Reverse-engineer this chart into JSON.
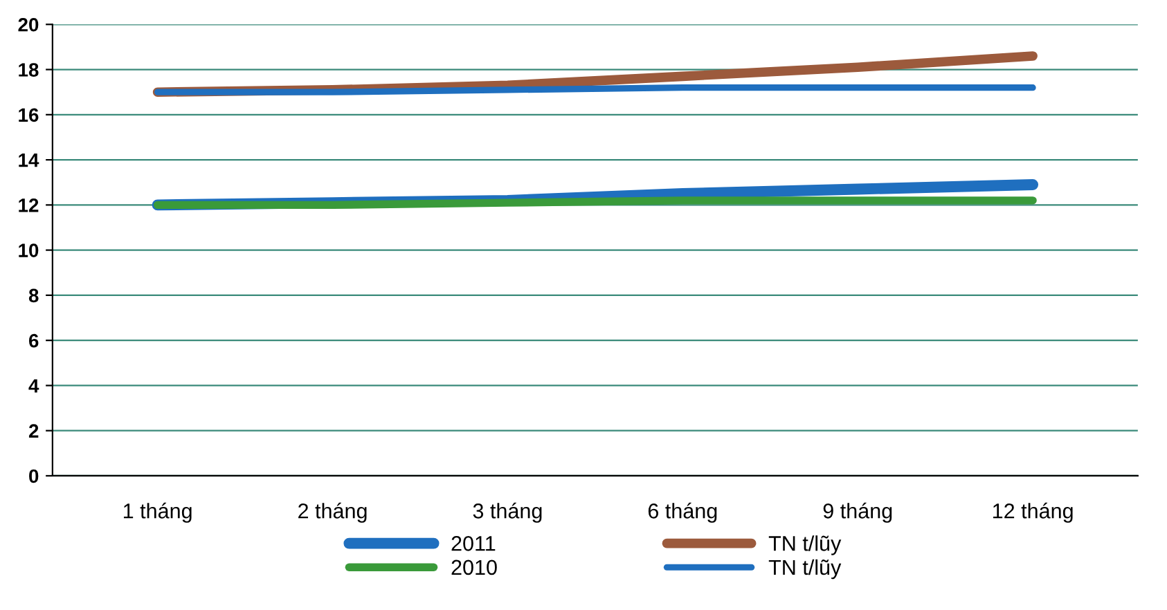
{
  "chart_data": {
    "type": "line",
    "categories": [
      "1 tháng",
      "2 tháng",
      "3 tháng",
      "6 tháng",
      "9 tháng",
      "12 tháng"
    ],
    "series": [
      {
        "name": "2011",
        "color": "#1f6fbf",
        "values": [
          12,
          12.1,
          12.2,
          12.5,
          12.7,
          12.9
        ]
      },
      {
        "name": "TN t/lũy",
        "color": "#9c5a3c",
        "values": [
          17,
          17.1,
          17.3,
          17.7,
          18.1,
          18.6
        ]
      },
      {
        "name": "2010",
        "color": "#3a9a3a",
        "values": [
          12,
          12,
          12.1,
          12.2,
          12.2,
          12.2
        ]
      },
      {
        "name": "TN t/lũy",
        "color": "#1f6fbf",
        "values": [
          17,
          17,
          17.1,
          17.2,
          17.2,
          17.2
        ]
      }
    ],
    "ylim": [
      0,
      20
    ],
    "yticks": [
      0,
      2,
      4,
      6,
      8,
      10,
      12,
      14,
      16,
      18,
      20
    ],
    "grid": "y",
    "legend": "bottom",
    "marker": "none",
    "line_style": "solid"
  }
}
